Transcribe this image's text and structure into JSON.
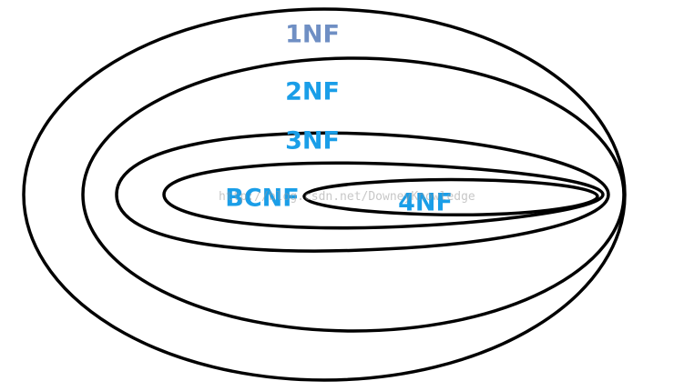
{
  "diagram": {
    "colors": {
      "stroke": "#000000",
      "label_1nf": "#6f8fc4",
      "label_default": "#1a9ee8"
    },
    "sets": [
      {
        "id": "1nf",
        "label": "1NF"
      },
      {
        "id": "2nf",
        "label": "2NF"
      },
      {
        "id": "3nf",
        "label": "3NF"
      },
      {
        "id": "bcnf",
        "label": "BCNF"
      },
      {
        "id": "4nf",
        "label": "4NF"
      }
    ],
    "watermark": "http://blog.csdn.net/DowneyKnowledge"
  }
}
